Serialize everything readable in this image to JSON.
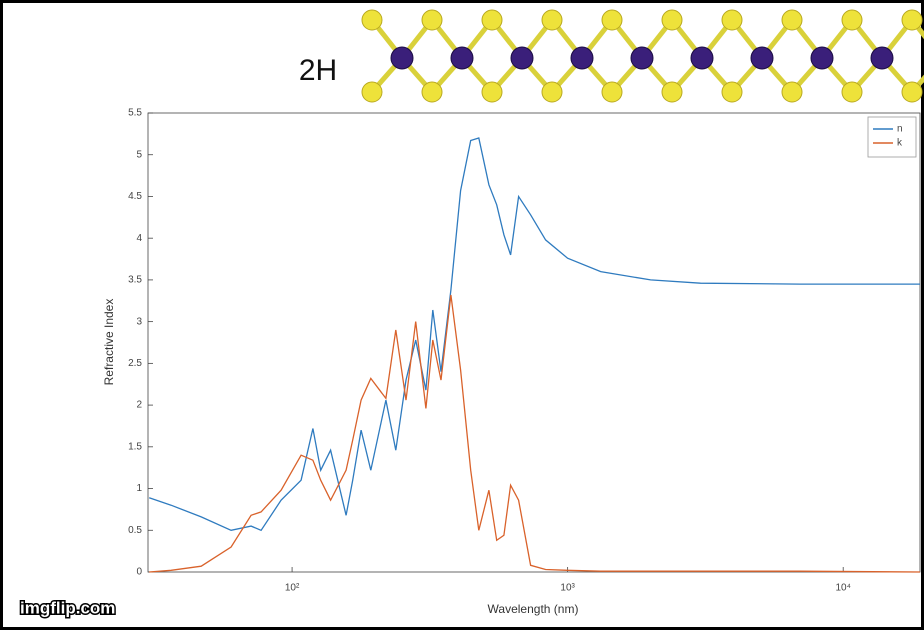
{
  "chart_data": {
    "type": "line",
    "title": "2H",
    "xlabel": "Wavelength (nm)",
    "ylabel": "Refractive Index",
    "watermark": "imgflip.com",
    "log_x": true,
    "legend": "upper right",
    "x": [
      30.3,
      36.4,
      46.8,
      60.1,
      71,
      77.2,
      91.2,
      107.8,
      119,
      127,
      138,
      157,
      166,
      178,
      193,
      219,
      238,
      259,
      281,
      306,
      324,
      347,
      377,
      409,
      445,
      476,
      518,
      553,
      587,
      621,
      664,
      734,
      832,
      1000,
      1318,
      2000,
      3034,
      6980,
      19000
    ],
    "xlim": [
      30,
      19000
    ],
    "xticks": [
      {
        "value": 100,
        "label": "10²"
      },
      {
        "value": 1000,
        "label": "10³"
      },
      {
        "value": 10000,
        "label": "10⁴"
      }
    ],
    "ylim": [
      0,
      5.5
    ],
    "yticks": [
      0,
      0.5,
      1,
      1.5,
      2,
      2.5,
      3,
      3.5,
      4,
      4.5,
      5,
      5.5
    ],
    "series": [
      {
        "name": "n",
        "color": "#2f7bbf",
        "values": [
          0.89,
          0.8,
          0.66,
          0.5,
          0.55,
          0.5,
          0.86,
          1.1,
          1.72,
          1.22,
          1.46,
          0.68,
          1.1,
          1.7,
          1.22,
          2.06,
          1.46,
          2.3,
          2.78,
          2.18,
          3.14,
          2.4,
          3.38,
          4.57,
          5.17,
          5.2,
          4.64,
          4.4,
          4.04,
          3.8,
          4.5,
          4.28,
          3.98,
          3.76,
          3.6,
          3.5,
          3.46,
          3.45,
          3.45
        ]
      },
      {
        "name": "k",
        "color": "#d9622b",
        "values": [
          0,
          0.02,
          0.07,
          0.3,
          0.68,
          0.72,
          0.98,
          1.4,
          1.34,
          1.1,
          0.86,
          1.22,
          1.58,
          2.06,
          2.32,
          2.08,
          2.9,
          2.06,
          3.0,
          1.96,
          2.78,
          2.3,
          3.32,
          2.42,
          1.22,
          0.5,
          0.98,
          0.38,
          0.44,
          1.04,
          0.86,
          0.08,
          0.03,
          0.02,
          0.01,
          0.01,
          0.01,
          0.01,
          0
        ]
      }
    ]
  }
}
